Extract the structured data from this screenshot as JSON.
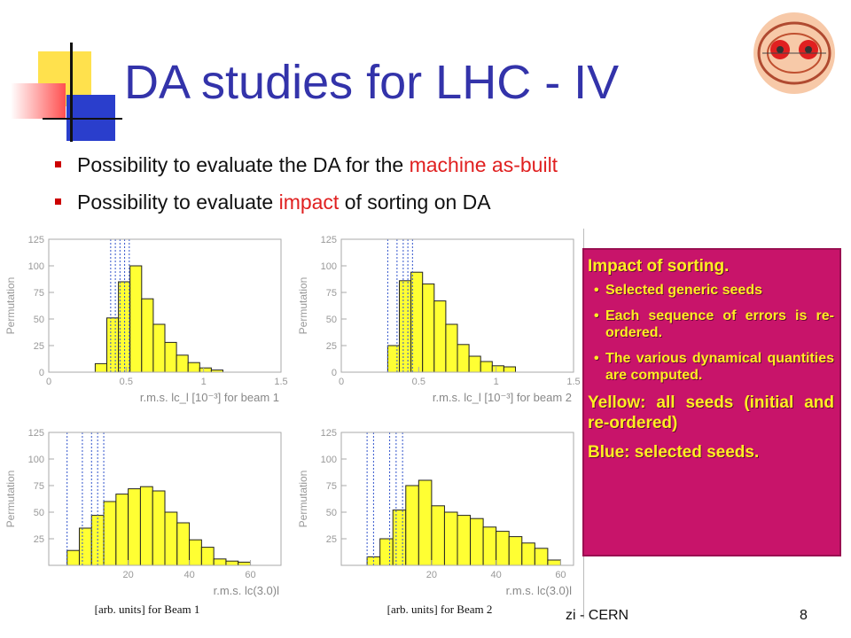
{
  "slide": {
    "title": "DA studies for LHC - IV",
    "bullets": [
      {
        "pre": "Possibility to evaluate the DA for the ",
        "highlight": "machine as-built",
        "post": ""
      },
      {
        "pre": "Possibility to evaluate ",
        "highlight": "impact",
        "post": " of sorting on DA"
      }
    ],
    "footer": "zi - CERN",
    "page_number": "8",
    "colors": {
      "title": "#3333aa",
      "highlight": "#e02020",
      "box_bg": "#c8146a",
      "box_text": "#ffee22",
      "hist_fill": "#ffff33",
      "seed_line": "#3355cc"
    }
  },
  "box": {
    "heading": "Impact of sorting.",
    "items": [
      "Selected generic seeds",
      "Each sequence of errors is re-ordered.",
      "The various dynamical quantities are computed."
    ],
    "yellow": "Yellow: all seeds (initial and re-ordered)",
    "blue": "Blue: selected seeds."
  },
  "chart_data": [
    {
      "type": "bar",
      "ylabel": "Permutation",
      "xlabel": "r.m.s. lc_l [10⁻³] for beam 1",
      "xlim": [
        0,
        1.5
      ],
      "ylim": [
        0,
        125
      ],
      "xticks": [
        "0",
        "0.5",
        "1",
        "1.5"
      ],
      "yticks": [
        "0",
        "25",
        "50",
        "75",
        "100",
        "125"
      ],
      "bin_edges": [
        0.3,
        0.375,
        0.45,
        0.525,
        0.6,
        0.675,
        0.75,
        0.825,
        0.9,
        0.975,
        1.05,
        1.125
      ],
      "values": [
        8,
        51,
        85,
        100,
        69,
        45,
        28,
        16,
        9,
        4,
        2
      ],
      "selected_seeds": [
        0.4,
        0.43,
        0.46,
        0.49,
        0.52
      ]
    },
    {
      "type": "bar",
      "ylabel": "Permutation",
      "xlabel": "r.m.s. lc_l [10⁻³] for beam 2",
      "xlim": [
        0,
        1.5
      ],
      "ylim": [
        0,
        125
      ],
      "xticks": [
        "0",
        "0.5",
        "1",
        "1.5"
      ],
      "yticks": [
        "0",
        "25",
        "50",
        "75",
        "100",
        "125"
      ],
      "bin_edges": [
        0.3,
        0.375,
        0.45,
        0.525,
        0.6,
        0.675,
        0.75,
        0.825,
        0.9,
        0.975,
        1.05,
        1.125
      ],
      "values": [
        25,
        86,
        94,
        83,
        67,
        45,
        26,
        15,
        10,
        6,
        5
      ],
      "selected_seeds": [
        0.3,
        0.36,
        0.4,
        0.43,
        0.46
      ]
    },
    {
      "type": "bar",
      "ylabel": "Permutation",
      "xlabel": "r.m.s. lc(3.0)l",
      "xlabel2": "[arb. units] for Beam 1",
      "xlim": [
        -6,
        70
      ],
      "ylim": [
        0,
        125
      ],
      "xticks": [
        "20",
        "40",
        "60"
      ],
      "yticks": [
        "25",
        "50",
        "75",
        "100",
        "125"
      ],
      "bin_edges": [
        0,
        4,
        8,
        12,
        16,
        20,
        24,
        28,
        32,
        36,
        40,
        44,
        48,
        52,
        56,
        60
      ],
      "values": [
        14,
        35,
        47,
        60,
        67,
        72,
        74,
        70,
        50,
        40,
        24,
        17,
        6,
        4,
        3
      ],
      "selected_seeds": [
        0,
        5,
        8,
        10,
        12
      ]
    },
    {
      "type": "bar",
      "ylabel": "Permutation",
      "xlabel": "r.m.s. lc(3.0)l",
      "xlabel2": "[arb. units] for Beam 2",
      "xlim": [
        -8,
        64
      ],
      "ylim": [
        0,
        125
      ],
      "xticks": [
        "20",
        "40",
        "60"
      ],
      "yticks": [
        "25",
        "50",
        "75",
        "100",
        "125"
      ],
      "bin_edges": [
        0,
        4,
        8,
        12,
        16,
        20,
        24,
        28,
        32,
        36,
        40,
        44,
        48,
        52,
        56,
        60
      ],
      "values": [
        8,
        25,
        52,
        75,
        80,
        56,
        50,
        47,
        44,
        36,
        32,
        27,
        21,
        16,
        5
      ],
      "selected_seeds": [
        0,
        2,
        7,
        9,
        11
      ]
    }
  ]
}
